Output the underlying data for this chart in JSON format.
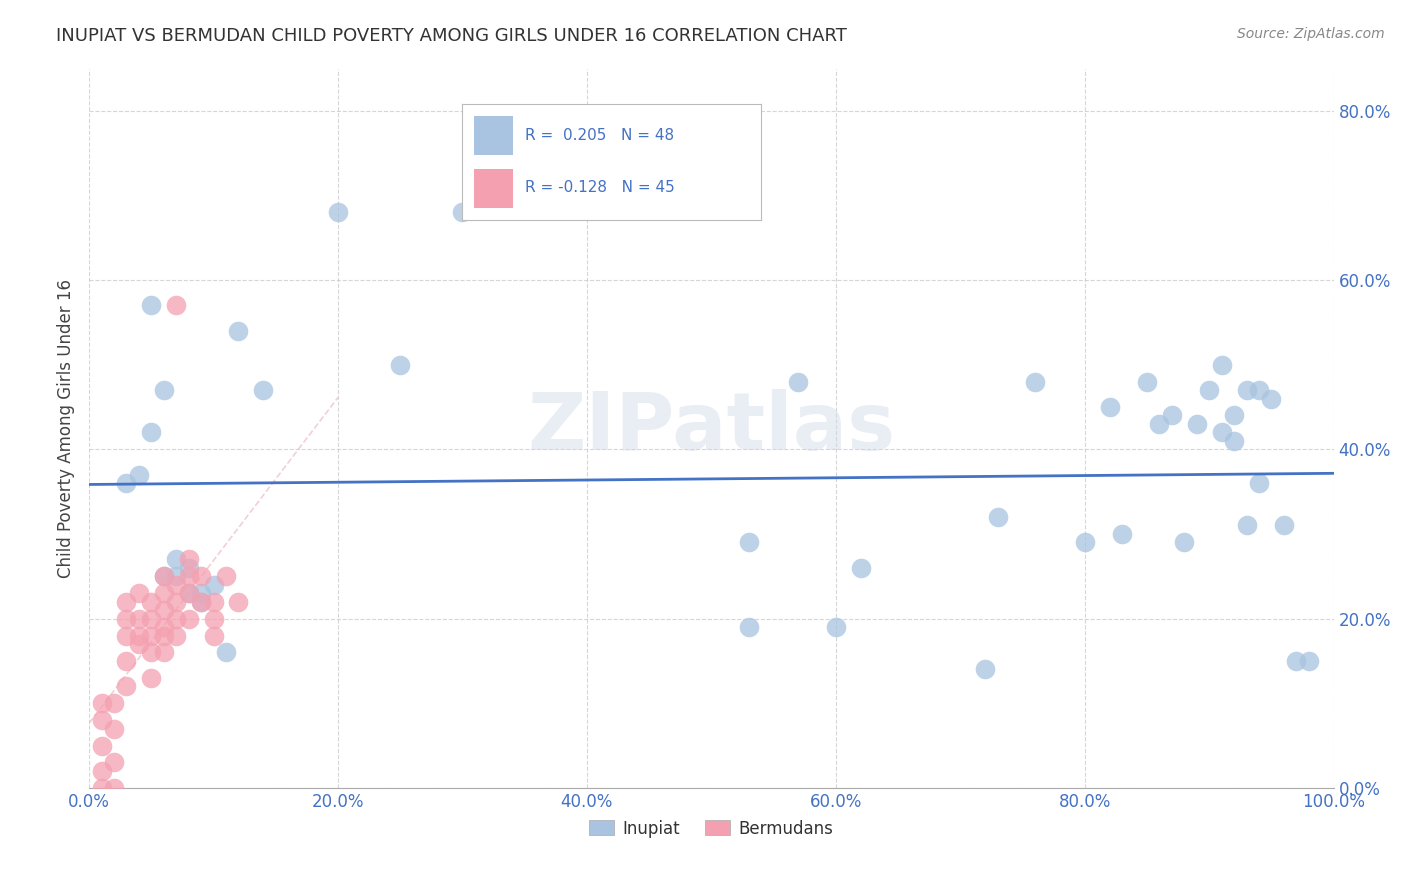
{
  "title": "INUPIAT VS BERMUDAN CHILD POVERTY AMONG GIRLS UNDER 16 CORRELATION CHART",
  "source": "Source: ZipAtlas.com",
  "ylabel": "Child Poverty Among Girls Under 16",
  "xlim": [
    0.0,
    1.0
  ],
  "ylim": [
    0.0,
    0.85
  ],
  "x_ticks": [
    0.0,
    0.2,
    0.4,
    0.6,
    0.8,
    1.0
  ],
  "x_tick_labels": [
    "0.0%",
    "20.0%",
    "40.0%",
    "60.0%",
    "80.0%",
    "100.0%"
  ],
  "y_ticks": [
    0.0,
    0.2,
    0.4,
    0.6,
    0.8
  ],
  "y_tick_labels": [
    "0.0%",
    "20.0%",
    "40.0%",
    "60.0%",
    "80.0%"
  ],
  "inupiat_R": 0.205,
  "inupiat_N": 48,
  "bermudan_R": -0.128,
  "bermudan_N": 45,
  "inupiat_color": "#a8c4e0",
  "bermudan_color": "#f4a0b0",
  "trend_inupiat_color": "#4472c4",
  "trend_bermudan_color": "#e8b0bb",
  "watermark": "ZIPatlas",
  "inupiat_x": [
    0.03,
    0.05,
    0.06,
    0.07,
    0.08,
    0.09,
    0.1,
    0.11,
    0.12,
    0.14,
    0.2,
    0.25,
    0.3,
    0.53,
    0.53,
    0.57,
    0.6,
    0.62,
    0.72,
    0.73,
    0.76,
    0.8,
    0.82,
    0.83,
    0.85,
    0.86,
    0.87,
    0.88,
    0.89,
    0.9,
    0.91,
    0.91,
    0.92,
    0.92,
    0.93,
    0.93,
    0.94,
    0.94,
    0.95,
    0.96,
    0.97,
    0.98,
    0.04,
    0.05,
    0.06,
    0.07,
    0.08,
    0.09
  ],
  "inupiat_y": [
    0.36,
    0.42,
    0.25,
    0.25,
    0.26,
    0.23,
    0.24,
    0.16,
    0.54,
    0.47,
    0.68,
    0.5,
    0.68,
    0.19,
    0.29,
    0.48,
    0.19,
    0.26,
    0.14,
    0.32,
    0.48,
    0.29,
    0.45,
    0.3,
    0.48,
    0.43,
    0.44,
    0.29,
    0.43,
    0.47,
    0.42,
    0.5,
    0.41,
    0.44,
    0.31,
    0.47,
    0.47,
    0.36,
    0.46,
    0.31,
    0.15,
    0.15,
    0.37,
    0.57,
    0.47,
    0.27,
    0.23,
    0.22
  ],
  "bermudan_x": [
    0.01,
    0.01,
    0.01,
    0.01,
    0.01,
    0.02,
    0.02,
    0.02,
    0.02,
    0.03,
    0.03,
    0.03,
    0.03,
    0.03,
    0.04,
    0.04,
    0.04,
    0.04,
    0.05,
    0.05,
    0.05,
    0.05,
    0.05,
    0.06,
    0.06,
    0.06,
    0.06,
    0.06,
    0.06,
    0.07,
    0.07,
    0.07,
    0.07,
    0.08,
    0.08,
    0.08,
    0.08,
    0.09,
    0.09,
    0.1,
    0.1,
    0.1,
    0.11,
    0.12,
    0.07
  ],
  "bermudan_y": [
    0.0,
    0.02,
    0.05,
    0.08,
    0.1,
    0.0,
    0.03,
    0.07,
    0.1,
    0.12,
    0.15,
    0.18,
    0.2,
    0.22,
    0.17,
    0.18,
    0.2,
    0.23,
    0.13,
    0.16,
    0.18,
    0.2,
    0.22,
    0.16,
    0.18,
    0.19,
    0.21,
    0.23,
    0.25,
    0.18,
    0.2,
    0.22,
    0.24,
    0.2,
    0.23,
    0.25,
    0.27,
    0.22,
    0.25,
    0.18,
    0.2,
    0.22,
    0.25,
    0.22,
    0.57
  ],
  "grid_color": "#cccccc",
  "bg_color": "#ffffff",
  "legend_labels_bottom": [
    "Inupiat",
    "Bermudans"
  ],
  "tick_color": "#4472c4"
}
